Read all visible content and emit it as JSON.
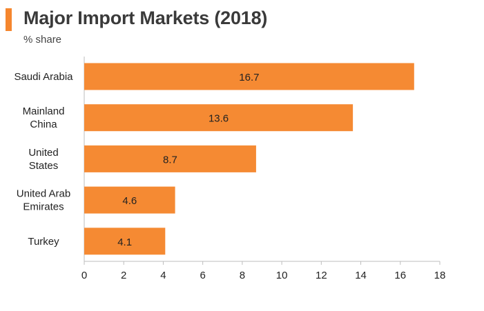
{
  "header": {
    "title": "Major Import Markets (2018)",
    "subtitle": "% share"
  },
  "colors": {
    "accent": "#f5862e",
    "bar": "#f58a33",
    "axis": "#bdbdbd",
    "text": "#222222"
  },
  "chart_data": {
    "type": "bar",
    "orientation": "horizontal",
    "title": "Major Import Markets (2018)",
    "subtitle": "% share",
    "categories": [
      [
        "Saudi Arabia"
      ],
      [
        "Mainland",
        "China"
      ],
      [
        "United",
        "States"
      ],
      [
        "United Arab",
        "Emirates"
      ],
      [
        "Turkey"
      ]
    ],
    "values": [
      16.7,
      13.6,
      8.7,
      4.6,
      4.1
    ],
    "value_labels": [
      "16.7",
      "13.6",
      "8.7",
      "4.6",
      "4.1"
    ],
    "xlim": [
      0,
      18
    ],
    "x_ticks": [
      0,
      2,
      4,
      6,
      8,
      10,
      12,
      14,
      16,
      18
    ],
    "grid": false,
    "legend": "none"
  }
}
